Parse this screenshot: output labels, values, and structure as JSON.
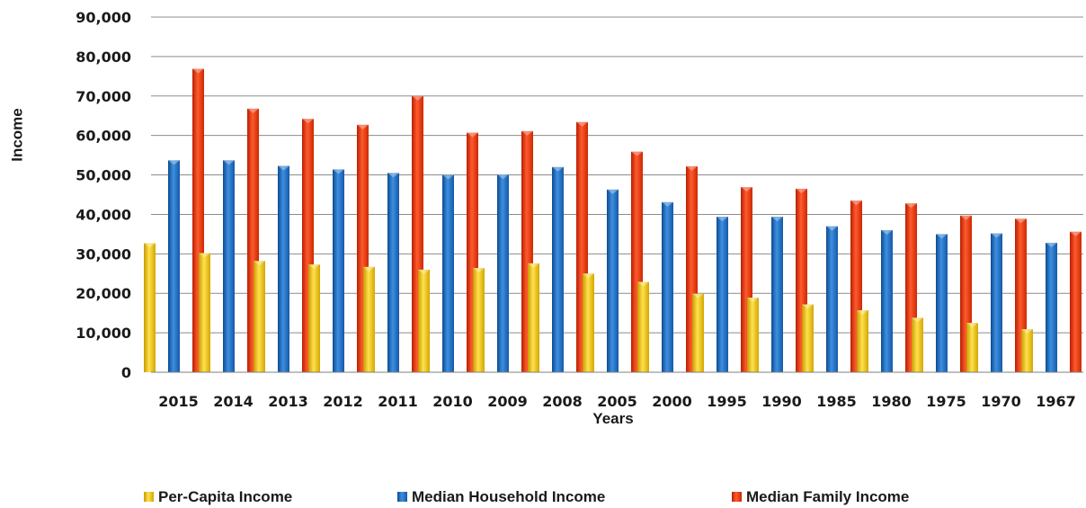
{
  "chart_data": {
    "type": "bar",
    "title": "",
    "xlabel": "Years",
    "ylabel": "Income",
    "categories": [
      "2015",
      "2014",
      "2013",
      "2012",
      "2011",
      "2010",
      "2009",
      "2008",
      "2005",
      "2000",
      "1995",
      "1990",
      "1985",
      "1980",
      "1975",
      "1970",
      "1967"
    ],
    "series": [
      {
        "name": "Per-Capita Income",
        "color": "#f2c200",
        "values": [
          32700,
          30200,
          28200,
          27300,
          26700,
          26000,
          26400,
          27600,
          25000,
          22900,
          19900,
          18900,
          17200,
          15700,
          13800,
          12500,
          10900
        ]
      },
      {
        "name": "Median Household Income",
        "color": "#1f6fc0",
        "values": [
          53700,
          53700,
          52300,
          51400,
          50500,
          50000,
          50100,
          52000,
          46300,
          43100,
          39400,
          39400,
          37000,
          36000,
          35000,
          35200,
          32800
        ]
      },
      {
        "name": "Median Family Income",
        "color": "#e8330a",
        "values": [
          76900,
          66800,
          64200,
          62700,
          70000,
          60700,
          61100,
          63400,
          55900,
          52200,
          46900,
          46500,
          43500,
          42800,
          39700,
          38900,
          35600
        ]
      }
    ],
    "ylim": [
      0,
      90000
    ],
    "yticks": [
      "0",
      "10,000",
      "20,000",
      "30,000",
      "40,000",
      "50,000",
      "60,000",
      "70,000",
      "80,000",
      "90,000"
    ],
    "grid": true,
    "legend": "bottom"
  }
}
